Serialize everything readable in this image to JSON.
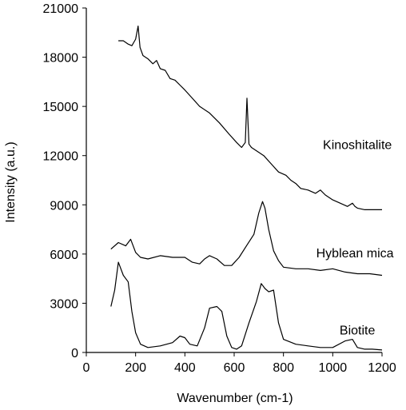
{
  "chart_data": {
    "type": "line",
    "xlabel": "Wavenumber (cm-1)",
    "ylabel": "Intensity (a.u.)",
    "xlim": [
      0,
      1200
    ],
    "ylim": [
      0,
      21000
    ],
    "xticks": [
      0,
      200,
      400,
      600,
      800,
      1000,
      1200
    ],
    "yticks": [
      0,
      3000,
      6000,
      9000,
      12000,
      15000,
      18000,
      21000
    ],
    "grid": false,
    "legend": "none",
    "line_color": "#000000",
    "series": [
      {
        "name": "Kinoshitalite",
        "x": [
          130,
          150,
          170,
          185,
          200,
          210,
          218,
          230,
          250,
          270,
          285,
          300,
          320,
          340,
          360,
          380,
          400,
          430,
          460,
          500,
          540,
          580,
          610,
          630,
          645,
          652,
          660,
          670,
          690,
          720,
          750,
          780,
          810,
          830,
          850,
          870,
          900,
          930,
          950,
          970,
          1000,
          1030,
          1060,
          1080,
          1090,
          1100,
          1130,
          1160,
          1200
        ],
        "y": [
          19000,
          19000,
          18800,
          18700,
          19100,
          19900,
          18600,
          18100,
          17900,
          17600,
          17800,
          17300,
          17200,
          16700,
          16600,
          16300,
          16000,
          15500,
          15000,
          14600,
          14000,
          13300,
          12800,
          12500,
          12800,
          15500,
          12700,
          12500,
          12300,
          12000,
          11500,
          11000,
          10800,
          10500,
          10300,
          10000,
          9900,
          9700,
          9900,
          9600,
          9300,
          9100,
          8900,
          9100,
          8900,
          8800,
          8700,
          8700,
          8700
        ]
      },
      {
        "name": "Hyblean mica",
        "x": [
          100,
          130,
          160,
          180,
          200,
          220,
          250,
          300,
          350,
          400,
          430,
          460,
          480,
          500,
          530,
          560,
          590,
          620,
          650,
          680,
          700,
          715,
          725,
          740,
          760,
          780,
          800,
          850,
          900,
          950,
          1000,
          1050,
          1100,
          1150,
          1200
        ],
        "y": [
          6300,
          6700,
          6500,
          6900,
          6100,
          5800,
          5700,
          5900,
          5800,
          5800,
          5500,
          5400,
          5700,
          5900,
          5700,
          5300,
          5300,
          5800,
          6500,
          7200,
          8500,
          9200,
          8800,
          7500,
          6200,
          5600,
          5200,
          5100,
          5100,
          5000,
          5100,
          4900,
          4800,
          4800,
          4700
        ]
      },
      {
        "name": "Biotite",
        "x": [
          100,
          115,
          130,
          150,
          170,
          185,
          200,
          220,
          250,
          300,
          350,
          380,
          400,
          420,
          450,
          480,
          500,
          530,
          550,
          570,
          590,
          610,
          630,
          660,
          690,
          710,
          725,
          740,
          760,
          780,
          800,
          850,
          900,
          950,
          1000,
          1050,
          1080,
          1100,
          1130,
          1160,
          1200
        ],
        "y": [
          2800,
          3800,
          5500,
          4700,
          4300,
          2500,
          1200,
          500,
          300,
          400,
          600,
          1000,
          900,
          500,
          400,
          1500,
          2700,
          2800,
          2500,
          1000,
          300,
          200,
          400,
          1800,
          3100,
          4200,
          3900,
          3700,
          3800,
          1800,
          800,
          500,
          400,
          300,
          300,
          700,
          800,
          300,
          200,
          200,
          150
        ]
      }
    ]
  }
}
